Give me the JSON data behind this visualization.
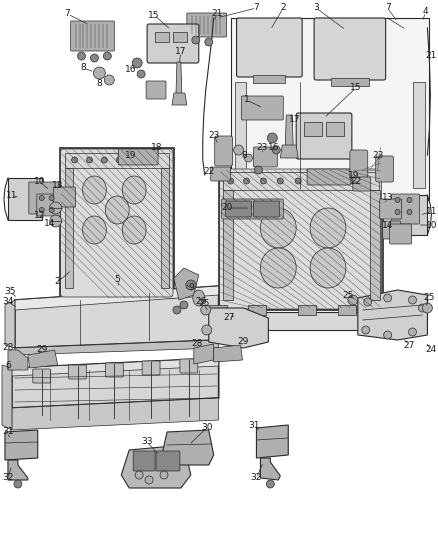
{
  "bg_color": "#ffffff",
  "line_color": "#2a2a2a",
  "figsize": [
    4.38,
    5.33
  ],
  "dpi": 100,
  "font_size": 6.5,
  "gray_part": "#c8c8c8",
  "gray_dark": "#888888",
  "gray_light": "#e0e0e0",
  "gray_mid": "#b0b0b0",
  "hatch_color": "#999999"
}
